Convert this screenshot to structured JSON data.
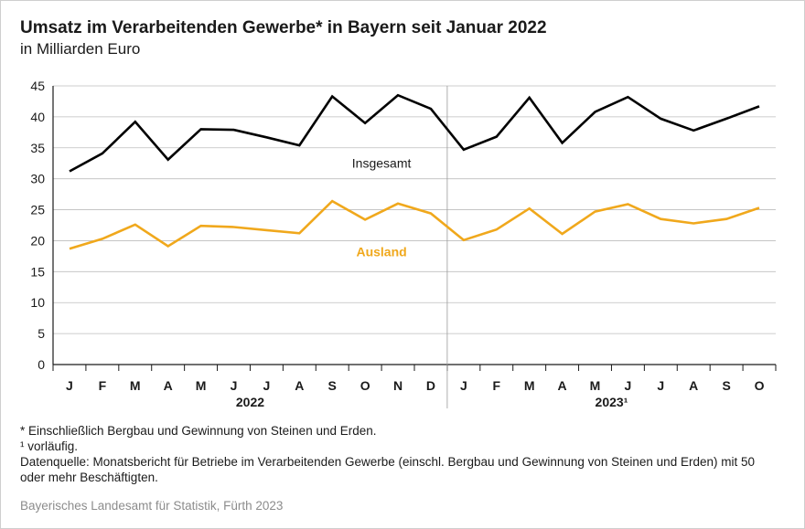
{
  "title": "Umsatz im Verarbeitenden Gewerbe* in Bayern seit Januar 2022",
  "subtitle": "in Milliarden Euro",
  "footnotes": [
    "* Einschließlich Bergbau und Gewinnung von Steinen und Erden.",
    "¹  vorläufig.",
    "Datenquelle: Monatsbericht für Betriebe im Verarbeitenden Gewerbe (einschl. Bergbau und Gewinnung von Steinen und Erden) mit 50 oder mehr Beschäftigten."
  ],
  "source": "Bayerisches Landesamt für Statistik, Fürth 2023",
  "chart_data": {
    "type": "line",
    "categories": [
      "J",
      "F",
      "M",
      "A",
      "M",
      "J",
      "J",
      "A",
      "S",
      "O",
      "N",
      "D",
      "J",
      "F",
      "M",
      "A",
      "M",
      "J",
      "J",
      "A",
      "S",
      "O"
    ],
    "year_groups": [
      {
        "label": "2022",
        "start": 0,
        "end": 11
      },
      {
        "label": "2023¹",
        "start": 12,
        "end": 21
      }
    ],
    "ylim": [
      0,
      45
    ],
    "yticks": [
      0,
      5,
      10,
      15,
      20,
      25,
      30,
      35,
      40,
      45
    ],
    "grid": true,
    "series": [
      {
        "name": "Insgesamt",
        "color": "#000000",
        "values": [
          31.2,
          34.1,
          39.2,
          33.1,
          38.0,
          37.9,
          36.7,
          35.4,
          43.3,
          39.0,
          43.5,
          41.3,
          34.7,
          36.8,
          43.1,
          35.8,
          40.8,
          43.2,
          39.7,
          37.8,
          39.7,
          41.7
        ]
      },
      {
        "name": "Ausland",
        "color": "#f0a81c",
        "values": [
          18.7,
          20.3,
          22.6,
          19.1,
          22.4,
          22.2,
          21.7,
          21.2,
          26.4,
          23.4,
          26.0,
          24.4,
          20.1,
          21.8,
          25.2,
          21.1,
          24.7,
          25.9,
          23.5,
          22.8,
          23.5,
          25.3
        ]
      }
    ]
  }
}
